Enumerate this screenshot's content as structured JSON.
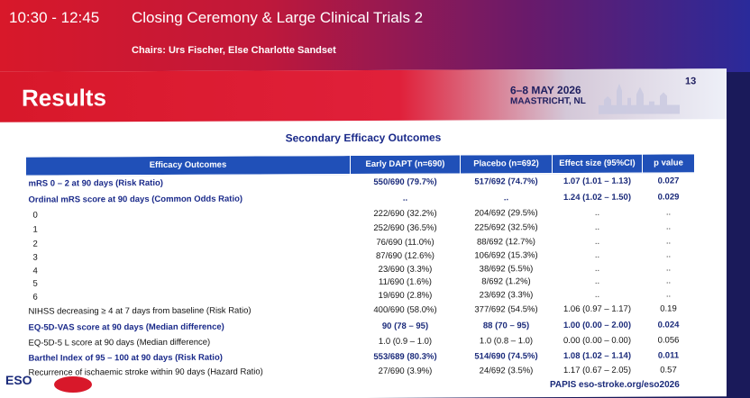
{
  "session": {
    "time": "10:30 - 12:45",
    "title": "Closing Ceremony & Large Clinical Trials 2",
    "chairs": "Chairs: Urs Fischer, Else Charlotte Sandset"
  },
  "slide": {
    "title": "Results",
    "conference_dates": "6–8 MAY 2026",
    "conference_place": "MAASTRICHT, NL",
    "slide_number": "13",
    "table_title": "Secondary Efficacy Outcomes",
    "colors": {
      "accent": "#d8182a",
      "table_header": "#2050b8",
      "text_blue": "#1a2a8a"
    }
  },
  "table": {
    "headers": [
      "Efficacy Outcomes",
      "Early DAPT (n=690)",
      "Placebo (n=692)",
      "Effect size (95%CI)",
      "p value"
    ],
    "rows": [
      {
        "label": "mRS 0 – 2 at 90 days (Risk Ratio)",
        "dapt": "550/690 (79.7%)",
        "placebo": "517/692 (74.7%)",
        "effect": "1.07 (1.01 – 1.13)",
        "p": "0.027",
        "bold": true,
        "indent": false
      },
      {
        "label": "Ordinal mRS score at 90 days (Common Odds Ratio)",
        "dapt": "..",
        "placebo": "..",
        "effect": "1.24 (1.02 – 1.50)",
        "p": "0.029",
        "bold": true,
        "indent": false
      },
      {
        "label": "0",
        "dapt": "222/690 (32.2%)",
        "placebo": "204/692 (29.5%)",
        "effect": "..",
        "p": "..",
        "bold": false,
        "indent": true
      },
      {
        "label": "1",
        "dapt": "252/690 (36.5%)",
        "placebo": "225/692 (32.5%)",
        "effect": "..",
        "p": "..",
        "bold": false,
        "indent": true
      },
      {
        "label": "2",
        "dapt": "76/690 (11.0%)",
        "placebo": "88/692 (12.7%)",
        "effect": "..",
        "p": "..",
        "bold": false,
        "indent": true
      },
      {
        "label": "3",
        "dapt": "87/690 (12.6%)",
        "placebo": "106/692 (15.3%)",
        "effect": "..",
        "p": "..",
        "bold": false,
        "indent": true
      },
      {
        "label": "4",
        "dapt": "23/690 (3.3%)",
        "placebo": "38/692 (5.5%)",
        "effect": "..",
        "p": "..",
        "bold": false,
        "indent": true
      },
      {
        "label": "5",
        "dapt": "11/690 (1.6%)",
        "placebo": "8/692 (1.2%)",
        "effect": "..",
        "p": "..",
        "bold": false,
        "indent": true
      },
      {
        "label": "6",
        "dapt": "19/690 (2.8%)",
        "placebo": "23/692 (3.3%)",
        "effect": "..",
        "p": "..",
        "bold": false,
        "indent": true
      },
      {
        "label": "NIHSS decreasing ≥ 4 at 7 days from baseline (Risk Ratio)",
        "dapt": "400/690 (58.0%)",
        "placebo": "377/692 (54.5%)",
        "effect": "1.06 (0.97 – 1.17)",
        "p": "0.19",
        "bold": false,
        "indent": false
      },
      {
        "label": "EQ-5D-VAS score at 90 days (Median difference)",
        "dapt": "90 (78 – 95)",
        "placebo": "88 (70 – 95)",
        "effect": "1.00 (0.00 – 2.00)",
        "p": "0.024",
        "bold": true,
        "indent": false
      },
      {
        "label": "EQ-5D-5 L score at 90 days (Median difference)",
        "dapt": "1.0 (0.9 – 1.0)",
        "placebo": "1.0 (0.8 – 1.0)",
        "effect": "0.00 (0.00 – 0.00)",
        "p": "0.056",
        "bold": false,
        "indent": false
      },
      {
        "label": "Barthel Index of 95 – 100 at 90 days (Risk Ratio)",
        "dapt": "553/689 (80.3%)",
        "placebo": "514/690 (74.5%)",
        "effect": "1.08 (1.02 – 1.14)",
        "p": "0.011",
        "bold": true,
        "indent": false
      },
      {
        "label": "Recurrence of ischaemic stroke within 90 days (Hazard Ratio)",
        "dapt": "27/690 (3.9%)",
        "placebo": "24/692 (3.5%)",
        "effect": "1.17 (0.67 – 2.05)",
        "p": "0.57",
        "bold": false,
        "indent": false
      }
    ]
  },
  "footer": {
    "logo": "ESO",
    "text": "PAPIS   eso-stroke.org/eso2026"
  }
}
